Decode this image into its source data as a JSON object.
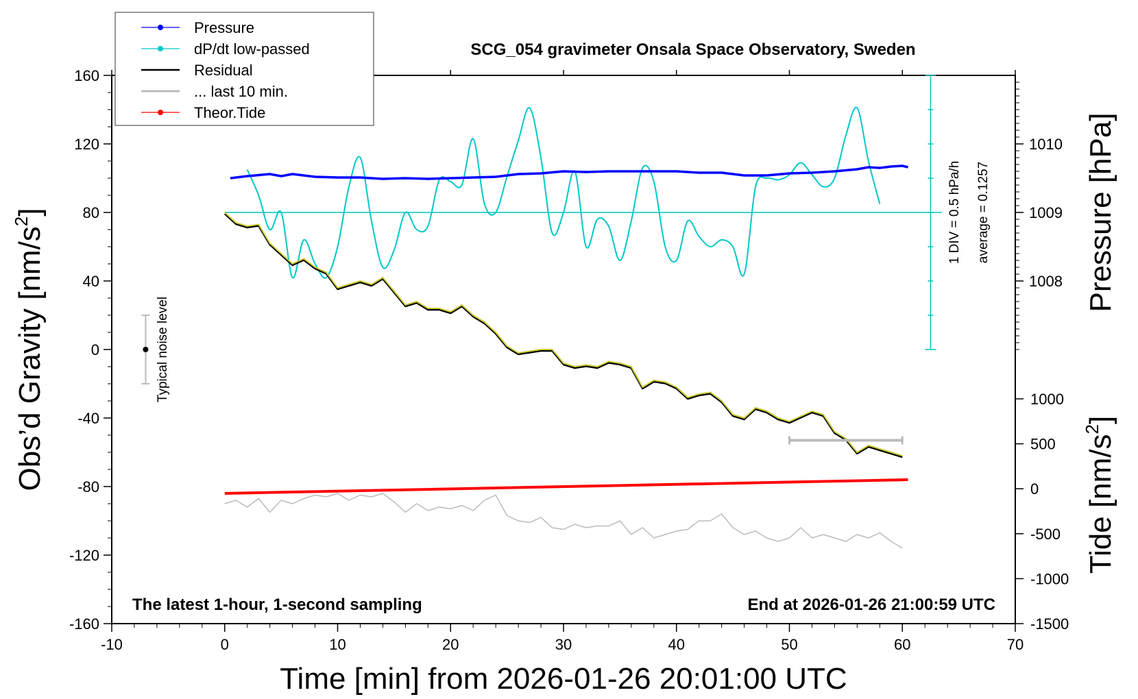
{
  "chart_data": {
    "type": "line",
    "title": "SCG_054 gravimeter Onsala Space Observatory, Sweden",
    "xlabel": "Time [min] from 2026-01-26 20:01:00 UTC",
    "ylabel_prefix": "Obs’d Gravity [nm/s",
    "ylabel_exp": "2",
    "ylabel_suffix": "]",
    "y2_label": "Pressure [hPa]",
    "y3_label_prefix": "Tide [nm/s",
    "y3_label_exp": "2",
    "y3_label_suffix": "]",
    "xlim": [
      -10,
      70
    ],
    "ylim": [
      -160,
      160
    ],
    "x_ticks": [
      "-10",
      "0",
      "10",
      "20",
      "30",
      "40",
      "50",
      "60",
      "70"
    ],
    "y_ticks": [
      "160",
      "120",
      "80",
      "40",
      "0",
      "-40",
      "-80",
      "-120",
      "-160"
    ],
    "pressure_ticks": [
      "1010",
      "1009",
      "1008"
    ],
    "pressure_range": [
      1008,
      1010
    ],
    "tide_ticks": [
      "1000",
      "500",
      "0",
      "-500",
      "-1000",
      "-1500"
    ],
    "tide_range": [
      -1500,
      1000
    ],
    "footer_left": "The latest 1-hour, 1-second sampling",
    "footer_right": "End at 2026-01-26 21:00:59 UTC",
    "noise_label": "Typical noise level",
    "noise_range": [
      -20,
      20
    ],
    "dpdt_scale": "1 DIV = 0.5 hPa/h",
    "dpdt_average": "average = 0.1257",
    "legend": [
      {
        "label": "Pressure",
        "color": "#0000ff",
        "marker": true
      },
      {
        "label": "dP/dt low-passed",
        "color": "#00c8c8",
        "marker": true
      },
      {
        "label": "Residual",
        "color": "#000000",
        "marker": false
      },
      {
        "label": "... last 10 min.",
        "color": "#bbbbbb",
        "marker": false
      },
      {
        "label": "Theor.Tide",
        "color": "#ff0000",
        "marker": true
      }
    ],
    "last10_bar": {
      "x_start": 50,
      "x_end": 60,
      "y": -53
    },
    "series": [
      {
        "name": "Pressure",
        "color": "#0000ff",
        "x": [
          0.5,
          2,
          4,
          5,
          6,
          8,
          10,
          12,
          14,
          16,
          18,
          20,
          22,
          24,
          26,
          28,
          30,
          32,
          34,
          36,
          38,
          40,
          42,
          44,
          46,
          48,
          50,
          52,
          54,
          56,
          57,
          58,
          59,
          60,
          60.5
        ],
        "values": [
          1009.5,
          1009.53,
          1009.56,
          1009.53,
          1009.56,
          1009.52,
          1009.51,
          1009.51,
          1009.49,
          1009.5,
          1009.49,
          1009.5,
          1009.51,
          1009.52,
          1009.56,
          1009.57,
          1009.6,
          1009.59,
          1009.6,
          1009.6,
          1009.6,
          1009.6,
          1009.58,
          1009.58,
          1009.54,
          1009.54,
          1009.57,
          1009.58,
          1009.6,
          1009.63,
          1009.66,
          1009.65,
          1009.67,
          1009.68,
          1009.66
        ]
      },
      {
        "name": "dP/dt low-passed",
        "color": "#00c8c8",
        "x": [
          2,
          3,
          4,
          5,
          6,
          7,
          8,
          9,
          10,
          11,
          12,
          13,
          14,
          15,
          16,
          17,
          18,
          19,
          20,
          21,
          22,
          23,
          24,
          25,
          26,
          27,
          28,
          29,
          30,
          31,
          32,
          33,
          34,
          35,
          36,
          37,
          38,
          39,
          40,
          41,
          42,
          43,
          44,
          45,
          46,
          47,
          48,
          49,
          50,
          51,
          52,
          53,
          54,
          55,
          56,
          57,
          58
        ],
        "values": [
          105,
          90,
          70,
          80,
          42,
          64,
          50,
          42,
          60,
          95,
          112,
          75,
          48,
          58,
          80,
          70,
          72,
          99,
          98,
          96,
          123,
          85,
          80,
          101,
          122,
          141,
          112,
          68,
          80,
          104,
          60,
          76,
          72,
          52,
          75,
          106,
          98,
          60,
          52,
          75,
          66,
          60,
          64,
          60,
          44,
          95,
          100,
          99,
          102,
          109,
          102,
          95,
          100,
          125,
          141,
          110,
          85
        ]
      },
      {
        "name": "Residual",
        "color": "#c8c832",
        "x": [
          0,
          1,
          2,
          3,
          4,
          5,
          6,
          7,
          8,
          9,
          10,
          11,
          12,
          13,
          14,
          15,
          16,
          17,
          18,
          19,
          20,
          21,
          22,
          23,
          24,
          25,
          26,
          27,
          28,
          29,
          30,
          31,
          32,
          33,
          34,
          35,
          36,
          37,
          38,
          39,
          40,
          41,
          42,
          43,
          44,
          45,
          46,
          47,
          48,
          49,
          50,
          51,
          52,
          53,
          54,
          55,
          56,
          57,
          58,
          59,
          60
        ],
        "values": [
          80,
          74,
          72,
          73,
          62,
          56,
          50,
          53,
          48,
          45,
          36,
          38,
          40,
          38,
          42,
          34,
          26,
          28,
          24,
          24,
          22,
          26,
          20,
          16,
          10,
          2,
          -2,
          -1,
          0,
          0,
          -8,
          -10,
          -9,
          -10,
          -7,
          -8,
          -10,
          -22,
          -18,
          -19,
          -22,
          -28,
          -26,
          -25,
          -30,
          -38,
          -40,
          -34,
          -36,
          -40,
          -42,
          -39,
          -36,
          -38,
          -48,
          -52,
          -60,
          -56,
          -58,
          -60,
          -62
        ]
      },
      {
        "name": "... last 10 min.",
        "color": "#bbbbbb",
        "x": [
          0,
          1,
          2,
          3,
          4,
          5,
          6,
          7,
          8,
          9,
          10,
          11,
          12,
          13,
          14,
          15,
          16,
          17,
          18,
          19,
          20,
          21,
          22,
          23,
          24,
          25,
          26,
          27,
          28,
          29,
          30,
          31,
          32,
          33,
          34,
          35,
          36,
          37,
          38,
          39,
          40,
          41,
          42,
          43,
          44,
          45,
          46,
          47,
          48,
          49,
          50,
          51,
          52,
          53,
          54,
          55,
          56,
          57,
          58,
          59,
          60
        ],
        "values": [
          -90,
          -88,
          -92,
          -87,
          -95,
          -88,
          -90,
          -87,
          -85,
          -86,
          -84,
          -88,
          -85,
          -86,
          -84,
          -89,
          -95,
          -90,
          -94,
          -92,
          -93,
          -91,
          -94,
          -88,
          -85,
          -97,
          -100,
          -101,
          -98,
          -104,
          -105,
          -102,
          -104,
          -103,
          -103,
          -100,
          -108,
          -104,
          -110,
          -108,
          -106,
          -105,
          -100,
          -100,
          -96,
          -104,
          -108,
          -106,
          -110,
          -112,
          -110,
          -104,
          -110,
          -108,
          -110,
          -112,
          -108,
          -110,
          -107,
          -112,
          -116
        ]
      },
      {
        "name": "Theor.Tide",
        "color": "#ff0000",
        "x": [
          0,
          60.5
        ],
        "values": [
          -84,
          -76
        ]
      }
    ]
  }
}
